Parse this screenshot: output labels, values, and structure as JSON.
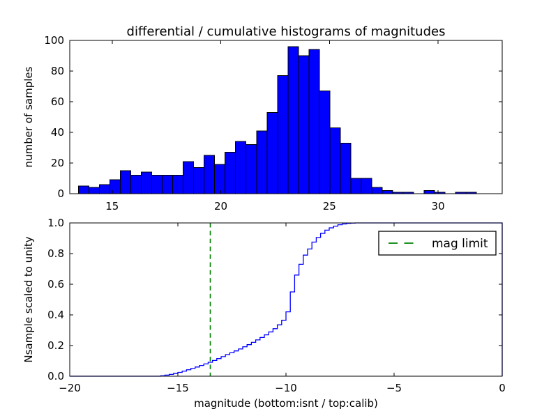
{
  "figure": {
    "background": "#ffffff",
    "title": "differential / cumulative histograms of magnitudes"
  },
  "colors": {
    "bar_fill": "#0000ff",
    "bar_edge": "#000000",
    "step_line": "#0000ff",
    "mag_limit_line": "#008000",
    "axis": "#000000",
    "text": "#000000"
  },
  "chart_data": [
    {
      "type": "bar",
      "id": "differential-histogram",
      "title": "differential / cumulative histograms of magnitudes",
      "xlabel": "",
      "ylabel": "number of samples",
      "xlim": [
        13.05,
        32.95
      ],
      "ylim": [
        0,
        100
      ],
      "xticks": [
        15,
        20,
        25,
        30
      ],
      "xtick_labels": [
        "15",
        "20",
        "25",
        "30"
      ],
      "yticks": [
        0,
        20,
        40,
        60,
        80,
        100
      ],
      "ytick_labels": [
        "0",
        "20",
        "40",
        "60",
        "80",
        "100"
      ],
      "bin_start": 13.45,
      "bin_width": 0.482,
      "values": [
        5,
        4,
        6,
        9,
        15,
        12,
        14,
        12,
        12,
        12,
        21,
        17,
        25,
        19,
        27,
        34,
        32,
        41,
        53,
        77,
        96,
        90,
        94,
        67,
        43,
        33,
        10,
        10,
        4,
        2,
        1,
        1,
        0,
        2,
        1,
        0,
        1,
        1
      ],
      "grid": false,
      "legend_position": "none"
    },
    {
      "type": "line",
      "subtype": "step-cumulative",
      "id": "cumulative-histogram",
      "title": "",
      "xlabel": "magnitude (bottom:isnt / top:calib)",
      "ylabel": "Nsample scaled to unity",
      "xlim": [
        -20,
        0
      ],
      "ylim": [
        0.0,
        1.0
      ],
      "xticks": [
        -20,
        -15,
        -10,
        -5,
        0
      ],
      "xtick_labels": [
        "−20",
        "−15",
        "−10",
        "−5",
        "0"
      ],
      "yticks": [
        0.0,
        0.2,
        0.4,
        0.6,
        0.8,
        1.0
      ],
      "ytick_labels": [
        "0.0",
        "0.2",
        "0.4",
        "0.6",
        "0.8",
        "1.0"
      ],
      "step": {
        "flat_zero_from": -20,
        "x_start": -15.8,
        "dx": 0.2,
        "y": [
          0.003,
          0.007,
          0.012,
          0.018,
          0.025,
          0.033,
          0.042,
          0.051,
          0.06,
          0.07,
          0.08,
          0.091,
          0.103,
          0.115,
          0.128,
          0.141,
          0.153,
          0.165,
          0.178,
          0.192,
          0.206,
          0.221,
          0.237,
          0.253,
          0.27,
          0.289,
          0.31,
          0.335,
          0.365,
          0.42,
          0.55,
          0.66,
          0.73,
          0.79,
          0.83,
          0.875,
          0.905,
          0.932,
          0.953,
          0.968,
          0.979,
          0.988,
          0.9935,
          0.997,
          0.999,
          1.0
        ],
        "flat_one_to": 0
      },
      "vline": {
        "x": -13.5,
        "style": "dashed",
        "color": "#008000",
        "label": "mag limit"
      },
      "legend": {
        "position": "upper right",
        "entries": [
          {
            "label": "mag limit",
            "color": "#008000",
            "style": "dashed"
          }
        ]
      },
      "grid": false
    }
  ]
}
